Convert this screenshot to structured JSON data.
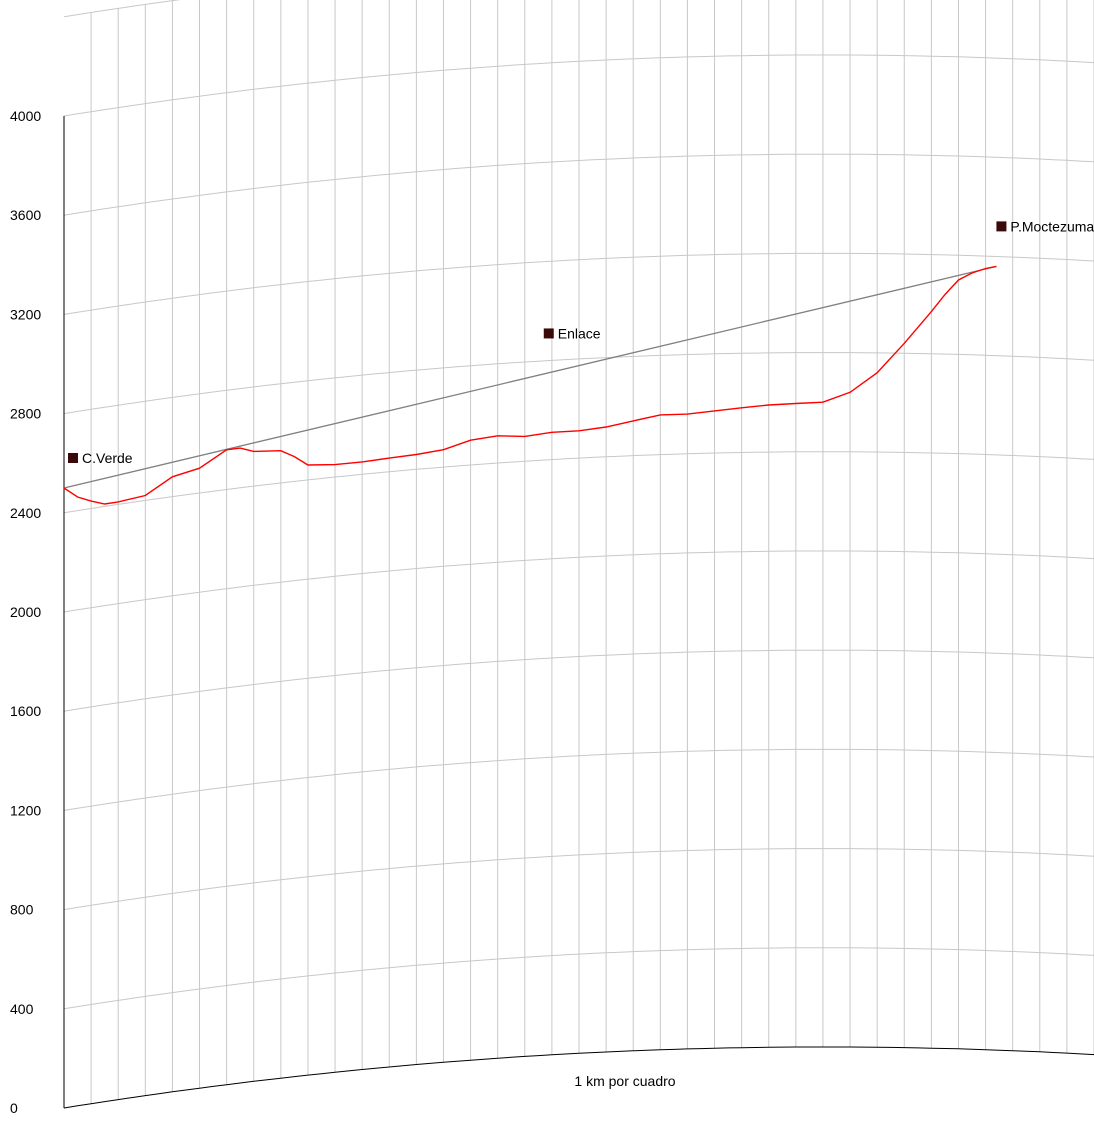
{
  "chart_data": {
    "type": "line",
    "title": "",
    "xlabel": "",
    "ylabel": "",
    "scale_note": "1 km por cuadro",
    "ylim": [
      0,
      4000
    ],
    "y_ticks": [
      "0",
      "400",
      "800",
      "1200",
      "1600",
      "2000",
      "2400",
      "2800",
      "3200",
      "3600",
      "4000"
    ],
    "x_units": "km",
    "xlim": [
      0,
      38
    ],
    "grid": true,
    "earth_curvature": true,
    "colors": {
      "terrain": "#ff0000",
      "link": "#808080",
      "grid": "#c8c8c8",
      "axis": "#000000",
      "marker": "#3a0a0a"
    },
    "sites": [
      {
        "name": "C.Verde",
        "km": 0,
        "elevation": 2500
      },
      {
        "name": "Enlace",
        "km": 17.7,
        "elevation": 2830
      },
      {
        "name": "P.Moctezuma",
        "km": 34.4,
        "elevation": 3160
      }
    ],
    "link_line": {
      "from": {
        "km": 0,
        "elevation": 2500
      },
      "to": {
        "km": 34.4,
        "elevation": 3160
      }
    },
    "series": [
      {
        "x": [
          0,
          0.5,
          1,
          1.5,
          2,
          3,
          4,
          5,
          6,
          6.5,
          7,
          8,
          8.5,
          9,
          10,
          11,
          12,
          13,
          14,
          15,
          16,
          17,
          18,
          19,
          20,
          21,
          22,
          23,
          24,
          25,
          26,
          27,
          28,
          29,
          30,
          31,
          32,
          32.5,
          33,
          33.5,
          34,
          34.4
        ],
        "y": [
          2500,
          2455,
          2430,
          2410,
          2410,
          2420,
          2480,
          2500,
          2560,
          2560,
          2540,
          2530,
          2500,
          2460,
          2450,
          2450,
          2455,
          2460,
          2470,
          2500,
          2510,
          2500,
          2510,
          2510,
          2520,
          2540,
          2560,
          2560,
          2570,
          2580,
          2590,
          2595,
          2600,
          2640,
          2720,
          2840,
          2970,
          3040,
          3100,
          3130,
          3150,
          3160
        ]
      }
    ]
  }
}
